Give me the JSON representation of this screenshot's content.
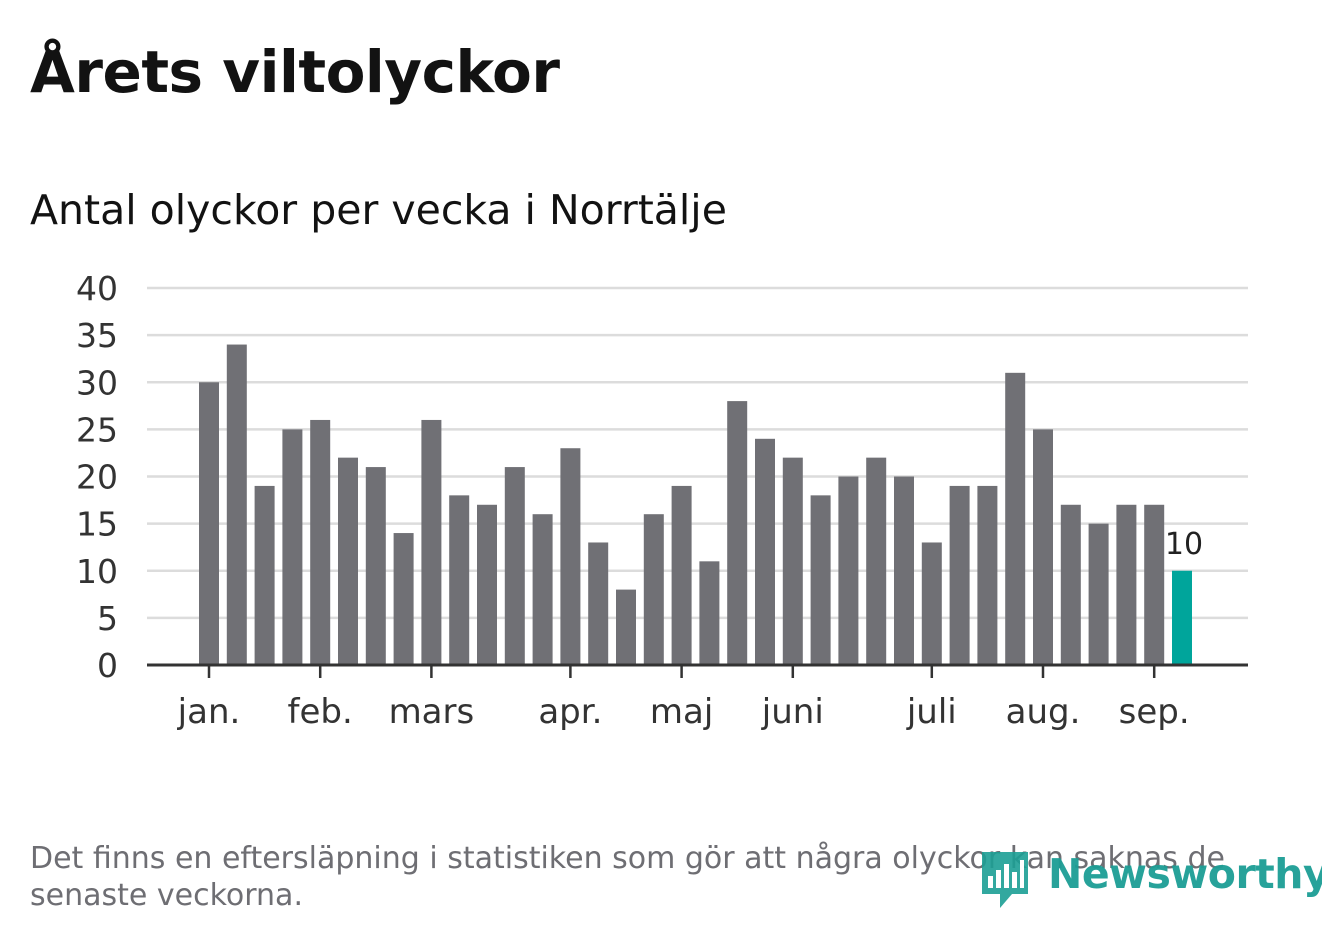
{
  "title": "Årets viltolyckor",
  "subtitle": "Antal olyckor per vecka i Norrtälje",
  "footnote": "Det finns en eftersläpning i statistiken som gör att några olyckor kan saknas de senaste veckorna.",
  "logo": {
    "text": "Newsworthy",
    "color": "#1c9e95"
  },
  "colors": {
    "bar": "#707075",
    "highlight": "#00a59b",
    "grid": "#dcdcdc",
    "axis": "#333333",
    "text": "#333333"
  },
  "chart_data": {
    "type": "bar",
    "title": "Antal olyckor per vecka i Norrtälje",
    "xlabel": "",
    "ylabel": "",
    "ylim": [
      0,
      40
    ],
    "yticks": [
      "0",
      "5",
      "10",
      "15",
      "20",
      "25",
      "30",
      "35",
      "40"
    ],
    "months": [
      {
        "label": "jan.",
        "week": 1
      },
      {
        "label": "feb.",
        "week": 5
      },
      {
        "label": "mars",
        "week": 9
      },
      {
        "label": "apr.",
        "week": 14
      },
      {
        "label": "maj",
        "week": 18
      },
      {
        "label": "juni",
        "week": 22
      },
      {
        "label": "juli",
        "week": 27
      },
      {
        "label": "aug.",
        "week": 31
      },
      {
        "label": "sep.",
        "week": 35
      }
    ],
    "weeks": [
      1,
      2,
      3,
      4,
      5,
      6,
      7,
      8,
      9,
      10,
      11,
      12,
      13,
      14,
      15,
      16,
      17,
      18,
      19,
      20,
      21,
      22,
      23,
      24,
      25,
      26,
      27,
      28,
      29,
      30,
      31,
      32,
      33,
      34,
      35,
      36
    ],
    "values": [
      30,
      34,
      19,
      25,
      26,
      22,
      21,
      14,
      26,
      18,
      17,
      21,
      16,
      23,
      13,
      8,
      16,
      19,
      11,
      28,
      24,
      22,
      18,
      20,
      22,
      20,
      13,
      19,
      19,
      31,
      25,
      17,
      15,
      17,
      17,
      10
    ],
    "highlight_index": 35,
    "highlight_label": "10",
    "grid": true
  }
}
